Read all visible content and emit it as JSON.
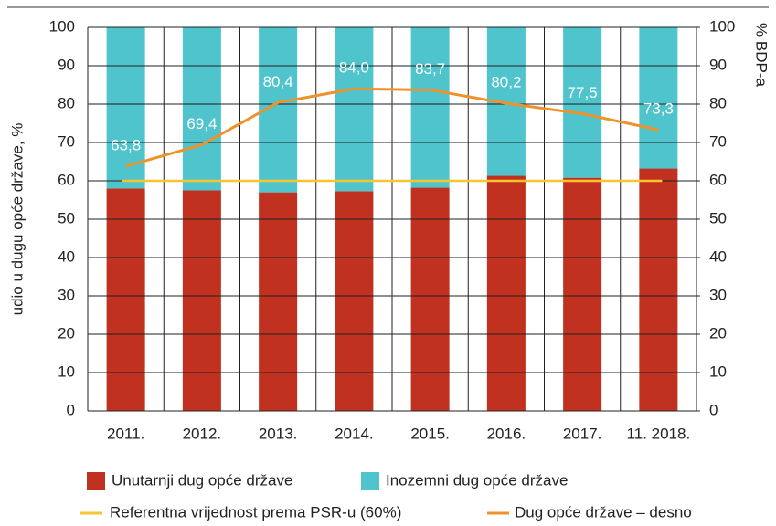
{
  "chart_data": {
    "type": "stacked_bar_line",
    "y_label": "udio u dugu opće države, %",
    "y2_label": "% BDP-a",
    "categories": [
      "2011.",
      "2012.",
      "2013.",
      "2014.",
      "2015.",
      "2016.",
      "2017.",
      "11. 2018."
    ],
    "series": [
      {
        "name": "Unutarnji dug opće države",
        "color": "#c0321f",
        "values": [
          58,
          57.5,
          57,
          57.3,
          58.2,
          61.3,
          60.8,
          63.2
        ]
      },
      {
        "name": "Inozemni dug opće države",
        "color": "#4fc4cc",
        "values": [
          42,
          42.5,
          43,
          42.7,
          41.8,
          38.7,
          39.2,
          36.8
        ]
      },
      {
        "name": "Dug opće države – desno",
        "color": "#f0922b",
        "axis": "y2",
        "type": "line",
        "values": [
          63.8,
          69.4,
          80.4,
          84.0,
          83.7,
          80.2,
          77.5,
          73.3
        ],
        "value_labels": [
          "63,8",
          "69,4",
          "80,4",
          "84,0",
          "83,7",
          "80,2",
          "77,5",
          "73,3"
        ]
      }
    ],
    "reference": {
      "name": "Referentna vrijednost prema PSR-u (60%)",
      "value": 60,
      "color": "#f6c530",
      "axis": "y2"
    },
    "ylim": [
      0,
      100
    ],
    "yticks": [
      0,
      10,
      20,
      30,
      40,
      50,
      60,
      70,
      80,
      90,
      100
    ],
    "y2lim": [
      0,
      100
    ],
    "y2ticks": [
      0,
      10,
      20,
      30,
      40,
      50,
      60,
      70,
      80,
      90,
      100
    ],
    "grid": true
  }
}
